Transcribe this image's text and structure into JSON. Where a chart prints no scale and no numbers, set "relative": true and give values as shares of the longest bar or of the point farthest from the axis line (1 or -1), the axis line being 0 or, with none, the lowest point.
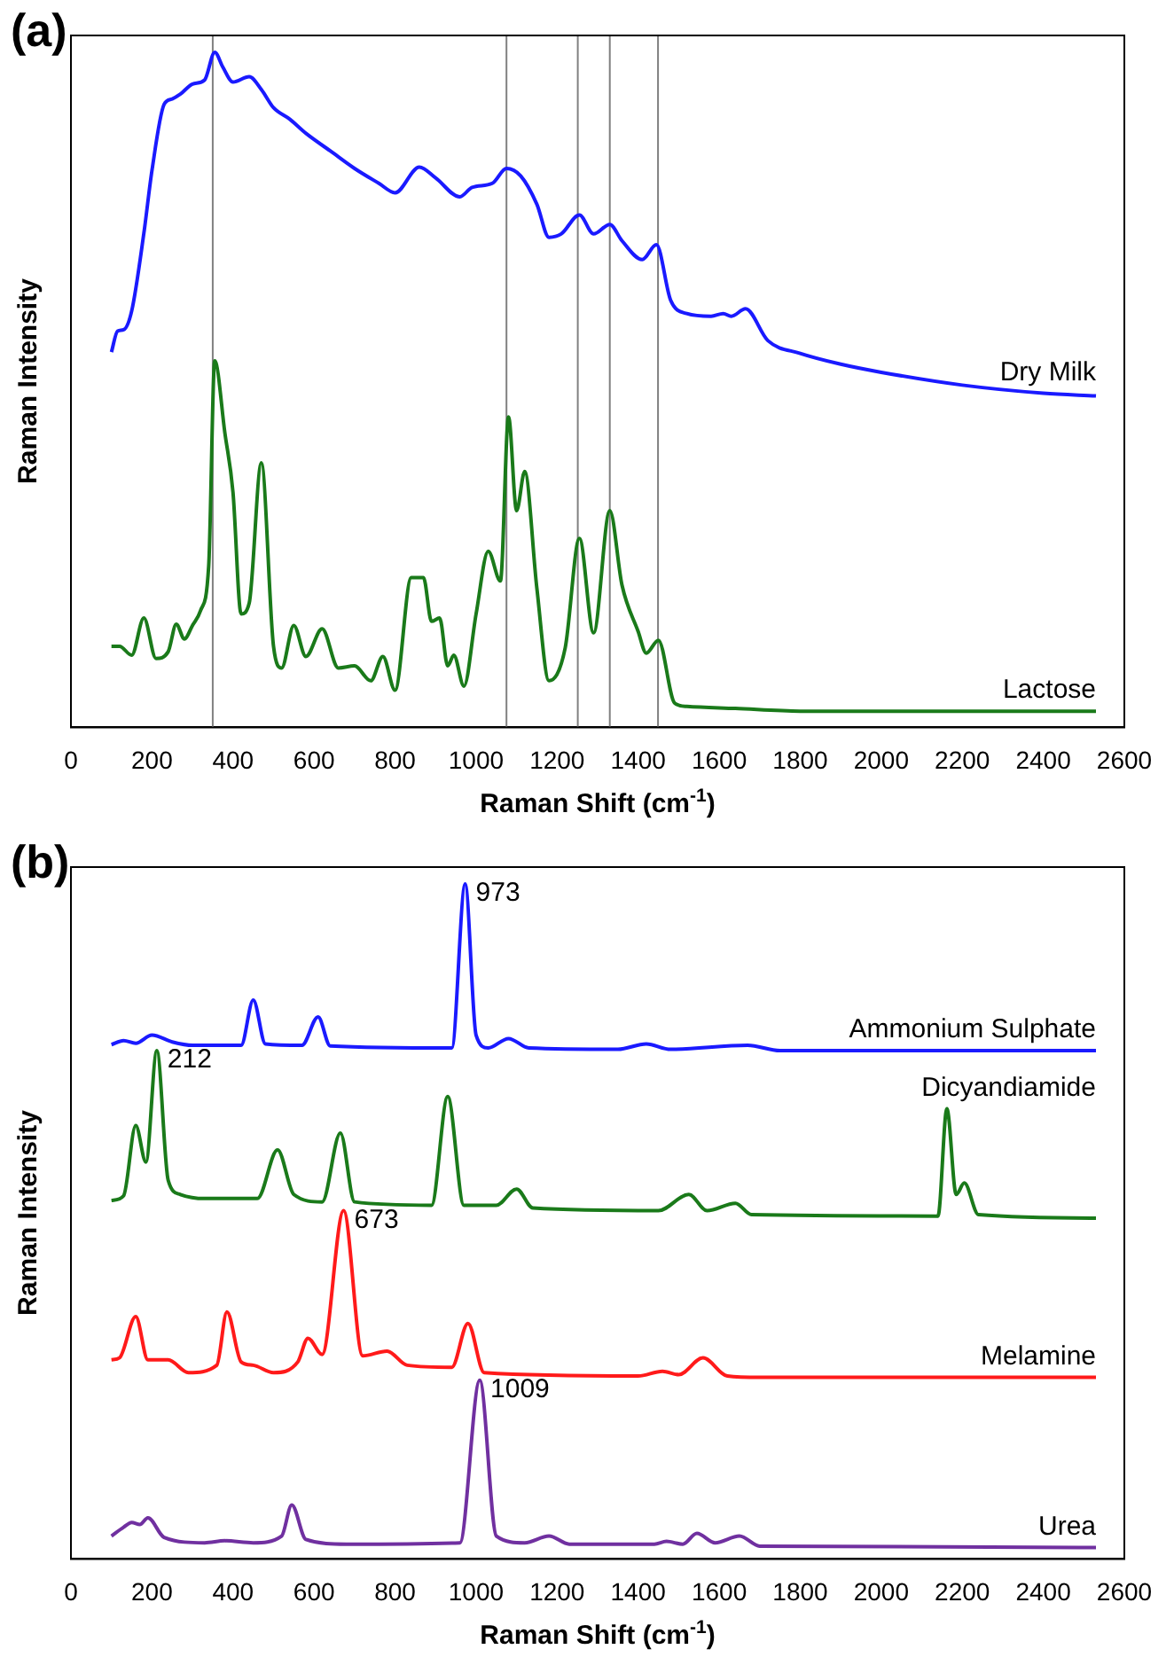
{
  "chart_data": [
    {
      "type": "line",
      "title": "(a)",
      "xlabel": "Raman Shift (cm$^{-1}$)",
      "ylabel": "Raman Intensity",
      "relative": true,
      "xlim": [
        0,
        2600
      ],
      "xticks": [
        0,
        200,
        400,
        600,
        800,
        1000,
        1200,
        1400,
        1600,
        1800,
        2000,
        2200,
        2400,
        2600
      ],
      "grid": false,
      "legend": false,
      "marker": "none",
      "ref_lines": [
        {
          "axis": "x",
          "value": 350,
          "color": "#808080"
        },
        {
          "axis": "x",
          "value": 1075,
          "color": "#808080"
        },
        {
          "axis": "x",
          "value": 1251,
          "color": "#808080"
        },
        {
          "axis": "x",
          "value": 1330,
          "color": "#808080"
        },
        {
          "axis": "x",
          "value": 1449,
          "color": "#808080"
        }
      ],
      "series": [
        {
          "name": "Dry Milk",
          "color": "#1a1aff",
          "x": [
            100,
            115,
            130,
            150,
            180,
            200,
            230,
            250,
            270,
            300,
            330,
            355,
            375,
            400,
            440,
            470,
            500,
            540,
            580,
            640,
            700,
            760,
            800,
            860,
            900,
            960,
            990,
            1040,
            1075,
            1110,
            1150,
            1180,
            1210,
            1255,
            1290,
            1330,
            1360,
            1410,
            1445,
            1480,
            1520,
            1580,
            1610,
            1630,
            1665,
            1720,
            1800,
            1900,
            2000,
            2200,
            2400,
            2530
          ],
          "values": [
            0.556,
            0.587,
            0.589,
            0.617,
            0.732,
            0.825,
            0.923,
            0.931,
            0.938,
            0.953,
            0.959,
            1.0,
            0.978,
            0.956,
            0.964,
            0.945,
            0.918,
            0.901,
            0.88,
            0.854,
            0.828,
            0.806,
            0.792,
            0.83,
            0.814,
            0.786,
            0.8,
            0.806,
            0.828,
            0.817,
            0.775,
            0.726,
            0.731,
            0.759,
            0.731,
            0.745,
            0.721,
            0.693,
            0.715,
            0.633,
            0.613,
            0.609,
            0.613,
            0.609,
            0.62,
            0.573,
            0.554,
            0.538,
            0.526,
            0.507,
            0.495,
            0.491
          ]
        },
        {
          "name": "Lactose",
          "color": "#1a7a1a",
          "x": [
            100,
            120,
            150,
            180,
            210,
            240,
            260,
            280,
            300,
            320,
            340,
            355,
            380,
            400,
            420,
            440,
            470,
            500,
            520,
            550,
            580,
            620,
            660,
            700,
            740,
            770,
            800,
            840,
            870,
            890,
            910,
            930,
            945,
            970,
            1000,
            1030,
            1060,
            1080,
            1100,
            1120,
            1150,
            1180,
            1220,
            1255,
            1290,
            1330,
            1360,
            1400,
            1420,
            1450,
            1490,
            1520,
            1640,
            1800,
            2200,
            2530
          ],
          "values": [
            0.12,
            0.12,
            0.107,
            0.162,
            0.102,
            0.112,
            0.153,
            0.131,
            0.151,
            0.173,
            0.239,
            0.543,
            0.436,
            0.348,
            0.168,
            0.184,
            0.392,
            0.12,
            0.088,
            0.151,
            0.105,
            0.146,
            0.088,
            0.091,
            0.069,
            0.105,
            0.055,
            0.222,
            0.222,
            0.157,
            0.162,
            0.091,
            0.107,
            0.061,
            0.168,
            0.261,
            0.217,
            0.46,
            0.321,
            0.379,
            0.206,
            0.069,
            0.118,
            0.28,
            0.14,
            0.321,
            0.211,
            0.142,
            0.11,
            0.129,
            0.036,
            0.031,
            0.028,
            0.024,
            0.024,
            0.024
          ]
        }
      ]
    },
    {
      "type": "line",
      "title": "(b)",
      "xlabel": "Raman Shift (cm$^{-1}$)",
      "ylabel": "Raman Intensity",
      "relative": true,
      "xlim": [
        0,
        2600
      ],
      "xticks": [
        0,
        200,
        400,
        600,
        800,
        1000,
        1200,
        1400,
        1600,
        1800,
        2000,
        2200,
        2400,
        2600
      ],
      "grid": false,
      "legend": false,
      "marker": "none",
      "annotations": [
        {
          "text": "973",
          "x": 973,
          "y": 1.0
        },
        {
          "text": "212",
          "x": 212,
          "y": 0.753
        },
        {
          "text": "673",
          "x": 673,
          "y": 0.516
        },
        {
          "text": "1009",
          "x": 1009,
          "y": 0.265
        }
      ],
      "series": [
        {
          "name": "Ammonium Sulphate",
          "color": "#1a1aff",
          "x": [
            100,
            130,
            160,
            200,
            250,
            300,
            420,
            450,
            480,
            570,
            610,
            640,
            940,
            973,
            1000,
            1030,
            1080,
            1130,
            1350,
            1420,
            1480,
            1670,
            1750,
            2530
          ],
          "values": [
            0.762,
            0.768,
            0.764,
            0.776,
            0.766,
            0.761,
            0.761,
            0.828,
            0.763,
            0.761,
            0.803,
            0.76,
            0.757,
            1.0,
            0.776,
            0.757,
            0.771,
            0.757,
            0.755,
            0.763,
            0.755,
            0.761,
            0.753,
            0.753
          ]
        },
        {
          "name": "Dicyandiamide",
          "color": "#1a7a1a",
          "x": [
            100,
            130,
            160,
            185,
            212,
            240,
            270,
            330,
            460,
            510,
            550,
            620,
            665,
            700,
            890,
            930,
            970,
            1050,
            1100,
            1140,
            1450,
            1525,
            1570,
            1640,
            1680,
            2140,
            2162,
            2185,
            2205,
            2240,
            2530
          ],
          "values": [
            0.531,
            0.538,
            0.642,
            0.588,
            0.753,
            0.561,
            0.54,
            0.534,
            0.534,
            0.606,
            0.54,
            0.529,
            0.631,
            0.529,
            0.524,
            0.685,
            0.524,
            0.524,
            0.548,
            0.52,
            0.516,
            0.54,
            0.516,
            0.527,
            0.51,
            0.508,
            0.667,
            0.54,
            0.557,
            0.51,
            0.505
          ]
        },
        {
          "name": "Melamine",
          "color": "#ff1a1a",
          "x": [
            100,
            120,
            160,
            190,
            240,
            290,
            360,
            385,
            420,
            450,
            500,
            560,
            585,
            620,
            673,
            720,
            780,
            830,
            940,
            980,
            1020,
            1400,
            1460,
            1500,
            1560,
            1620,
            1700,
            2530
          ],
          "values": [
            0.295,
            0.298,
            0.359,
            0.295,
            0.295,
            0.276,
            0.287,
            0.366,
            0.292,
            0.287,
            0.276,
            0.292,
            0.327,
            0.303,
            0.516,
            0.301,
            0.308,
            0.287,
            0.284,
            0.349,
            0.276,
            0.271,
            0.278,
            0.273,
            0.298,
            0.271,
            0.269,
            0.269
          ]
        },
        {
          "name": "Urea",
          "color": "#7030a0",
          "x": [
            100,
            130,
            150,
            170,
            190,
            230,
            330,
            380,
            450,
            520,
            545,
            580,
            680,
            960,
            1009,
            1050,
            1120,
            1180,
            1230,
            1440,
            1470,
            1510,
            1545,
            1590,
            1650,
            1700,
            2530
          ],
          "values": [
            0.034,
            0.047,
            0.054,
            0.051,
            0.061,
            0.032,
            0.024,
            0.027,
            0.024,
            0.034,
            0.08,
            0.029,
            0.022,
            0.024,
            0.265,
            0.034,
            0.024,
            0.034,
            0.022,
            0.022,
            0.026,
            0.022,
            0.038,
            0.024,
            0.034,
            0.019,
            0.017
          ]
        }
      ]
    }
  ]
}
